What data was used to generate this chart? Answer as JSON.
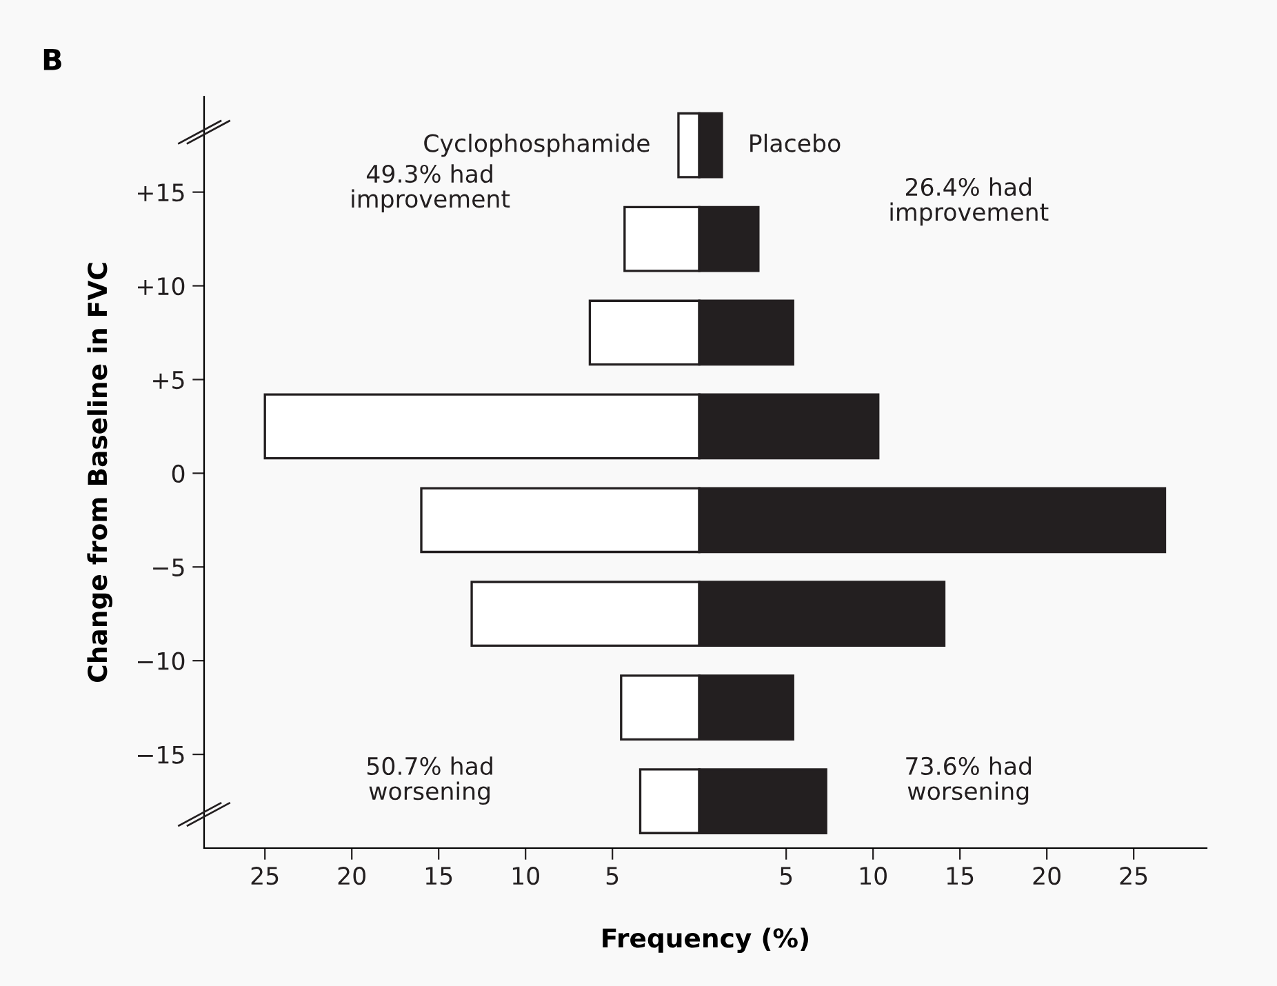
{
  "chart_data": {
    "type": "bar",
    "orientation": "horizontal",
    "title": "B",
    "xlabel": "Frequency (%)",
    "ylabel": "Change from Baseline in FVC",
    "x": [
      17.5,
      12.5,
      7.5,
      2.5,
      -2.5,
      -7.5,
      -12.5,
      -17.5
    ],
    "series": [
      {
        "name": "Cyclophosphamide",
        "color": "#ffffff",
        "values": [
          -1.2,
          -4.3,
          -6.3,
          -25.0,
          -16.0,
          -13.1,
          -4.5,
          -3.4
        ]
      },
      {
        "name": "Placebo",
        "color": "#231f20",
        "values": [
          1.3,
          3.4,
          5.4,
          10.3,
          26.8,
          14.1,
          5.4,
          7.3
        ]
      }
    ],
    "xlim": [
      -28.5,
      29.2
    ],
    "xticks": [
      {
        "value": -25,
        "label": "25"
      },
      {
        "value": -20,
        "label": "20"
      },
      {
        "value": -15,
        "label": "15"
      },
      {
        "value": -10,
        "label": "10"
      },
      {
        "value": -5,
        "label": "5"
      },
      5,
      10,
      15,
      20,
      25
    ],
    "ylim": [
      -20,
      20.1
    ],
    "yticks": [
      {
        "value": 15,
        "label": "+15"
      },
      {
        "value": 10,
        "label": "+10"
      },
      {
        "value": 5,
        "label": "+5"
      },
      0,
      {
        "value": -5,
        "label": "−5"
      },
      {
        "value": -10,
        "label": "−10"
      },
      {
        "value": -15,
        "label": "−15"
      }
    ],
    "annotations": [
      "49.3% had\nimprovement",
      "26.4% had\nimprovement",
      "50.7% had\nworsening",
      "73.6% had\nworsening"
    ],
    "stacked": true,
    "grid": false,
    "legend": false
  }
}
